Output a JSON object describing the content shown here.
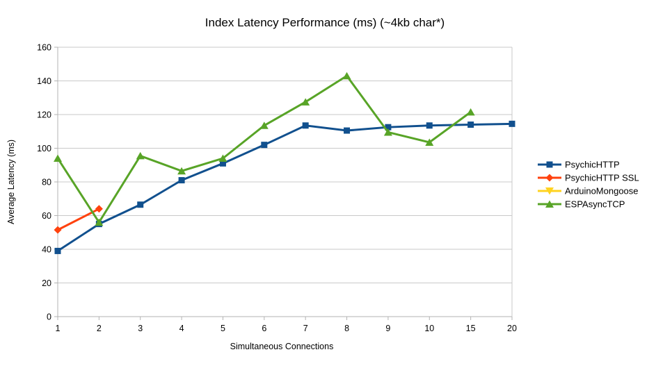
{
  "chart_data": {
    "type": "line",
    "title": "Index Latency Performance (ms) (~4kb char*)",
    "xlabel": "Simultaneous Connections",
    "ylabel": "Average Latency (ms)",
    "categories": [
      "1",
      "2",
      "3",
      "4",
      "5",
      "6",
      "7",
      "8",
      "9",
      "10",
      "15",
      "20"
    ],
    "yticks": [
      0,
      20,
      40,
      60,
      80,
      100,
      120,
      140,
      160
    ],
    "ylim": [
      0,
      160
    ],
    "grid": "horizontal",
    "legend_position": "right",
    "series": [
      {
        "name": "PsychicHTTP",
        "color": "#11508e",
        "marker": "square",
        "values": [
          39,
          55,
          66.5,
          81,
          91,
          102,
          113.5,
          110.5,
          112.5,
          113.5,
          114,
          114.5
        ]
      },
      {
        "name": "PsychicHTTP SSL",
        "color": "#ff420e",
        "marker": "diamond",
        "values": [
          51.5,
          64,
          null,
          null,
          null,
          null,
          null,
          null,
          null,
          null,
          null,
          null
        ]
      },
      {
        "name": "ArduinoMongoose",
        "color": "#ffd320",
        "marker": "triangle-down",
        "values": [
          null,
          null,
          null,
          null,
          null,
          null,
          null,
          null,
          null,
          null,
          null,
          null
        ]
      },
      {
        "name": "ESPAsyncTCP",
        "color": "#58a427",
        "marker": "triangle-up",
        "values": [
          94,
          56,
          95.5,
          86.5,
          94,
          113.5,
          127.5,
          143,
          109.5,
          103.5,
          121.5,
          null
        ]
      }
    ]
  },
  "colors": {
    "background": "#ffffff",
    "gridline": "#c9c9c9",
    "axis": "#b3b3b3",
    "text": "#000000"
  }
}
